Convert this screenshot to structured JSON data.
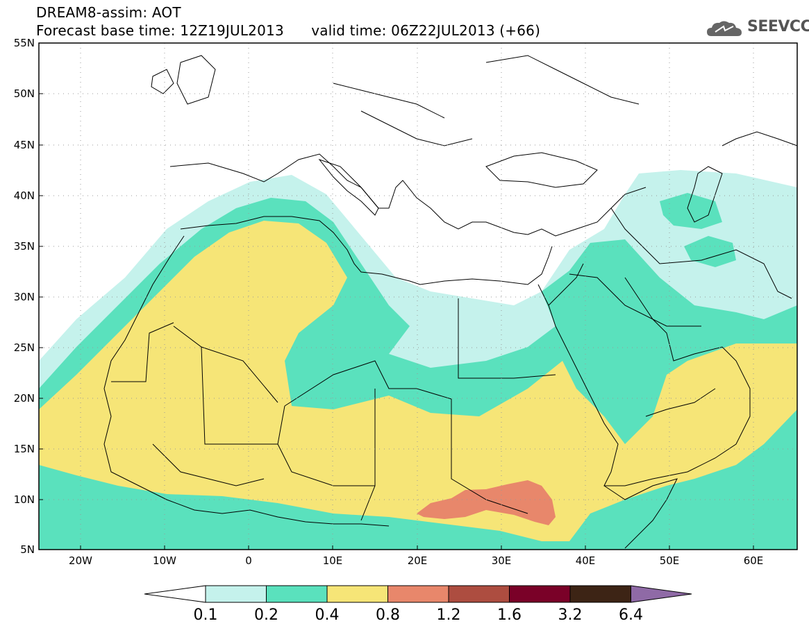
{
  "header": {
    "title_line1": "DREAM8-assim: AOT",
    "title_line2": "Forecast base time: 12Z19JUL2013      valid time: 06Z22JUL2013 (+66)"
  },
  "logo": {
    "text": "SEEVCCC",
    "icon": "cloud-icon"
  },
  "map": {
    "lat_labels": [
      "55N",
      "50N",
      "45N",
      "40N",
      "35N",
      "30N",
      "25N",
      "20N",
      "15N",
      "10N",
      "5N"
    ],
    "lon_labels": [
      "20W",
      "10W",
      "0",
      "10E",
      "20E",
      "30E",
      "40E",
      "50E",
      "60E"
    ],
    "field": "AOT"
  },
  "colorbar": {
    "levels": [
      "0.1",
      "0.2",
      "0.4",
      "0.8",
      "1.2",
      "1.6",
      "3.2",
      "6.4"
    ],
    "colors": [
      "#ffffff",
      "#c5f2ec",
      "#5ae1bd",
      "#f6e577",
      "#e8876b",
      "#ad4d40",
      "#7a0128",
      "#3d2415",
      "#8f6aa6"
    ]
  },
  "colors": {
    "aot_0_1": "#c5f2ec",
    "aot_0_2": "#5ae1bd",
    "aot_0_4": "#f6e577",
    "aot_0_8": "#e8876b",
    "land_outline": "#000000",
    "background": "#ffffff"
  }
}
